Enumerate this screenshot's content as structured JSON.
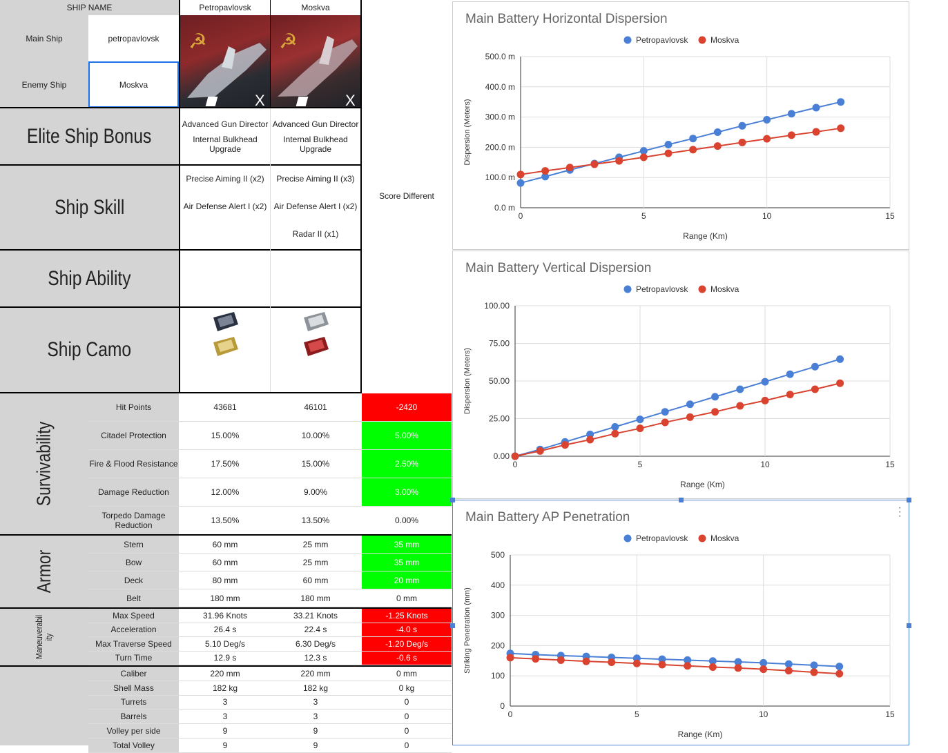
{
  "header": {
    "ship_name_label": "SHIP NAME",
    "main_ship_label": "Main Ship",
    "main_ship_value": "petropavlovsk",
    "enemy_ship_label": "Enemy Ship",
    "enemy_ship_value": "Moskva",
    "ship1_name": "Petropavlovsk",
    "ship2_name": "Moskva",
    "ship_badge": "X"
  },
  "sections": {
    "elite": "Elite Ship Bonus",
    "skill": "Ship Skill",
    "ability": "Ship Ability",
    "camo": "Ship Camo",
    "survivability": "Survivability",
    "armor": "Armor",
    "maneuverability": "Maneuverabil\nity"
  },
  "elite": {
    "ship1": [
      "Advanced Gun Director",
      "Internal Bulkhead\nUpgrade"
    ],
    "ship2": [
      "Advanced Gun Director",
      "Internal Bulkhead\nUpgrade"
    ]
  },
  "skills": {
    "ship1": [
      "Precise Aiming II (x2)",
      "Air Defense Alert I (x2)"
    ],
    "ship2": [
      "Precise Aiming II (x3)",
      "Air Defense Alert I (x2)",
      "Radar II (x1)"
    ]
  },
  "score_label": "Score Different",
  "survivability_rows": [
    {
      "label": "Hit Points",
      "v1": "43681",
      "v2": "46101",
      "diff": "-2420",
      "color": "red"
    },
    {
      "label": "Citadel Protection",
      "v1": "15.00%",
      "v2": "10.00%",
      "diff": "5.00%",
      "color": "green"
    },
    {
      "label": "Fire & Flood Resistance",
      "v1": "17.50%",
      "v2": "15.00%",
      "diff": "2.50%",
      "color": "green"
    },
    {
      "label": "Damage Reduction",
      "v1": "12.00%",
      "v2": "9.00%",
      "diff": "3.00%",
      "color": "green"
    },
    {
      "label": "Torpedo Damage\nReduction",
      "v1": "13.50%",
      "v2": "13.50%",
      "diff": "0.00%",
      "color": "none"
    }
  ],
  "armor_rows": [
    {
      "label": "Stern",
      "v1": "60 mm",
      "v2": "25 mm",
      "diff": "35 mm",
      "color": "green"
    },
    {
      "label": "Bow",
      "v1": "60 mm",
      "v2": "25 mm",
      "diff": "35 mm",
      "color": "green"
    },
    {
      "label": "Deck",
      "v1": "80 mm",
      "v2": "60 mm",
      "diff": "20 mm",
      "color": "green"
    },
    {
      "label": "Belt",
      "v1": "180 mm",
      "v2": "180 mm",
      "diff": "0 mm",
      "color": "none"
    }
  ],
  "maneuver_rows": [
    {
      "label": "Max Speed",
      "v1": "31.96 Knots",
      "v2": "33.21 Knots",
      "diff": "-1.25 Knots",
      "color": "red"
    },
    {
      "label": "Acceleration",
      "v1": "26.4 s",
      "v2": "22.4 s",
      "diff": "-4.0 s",
      "color": "red"
    },
    {
      "label": "Max Traverse Speed",
      "v1": "5.10 Deg/s",
      "v2": "6.30 Deg/s",
      "diff": "-1.20 Deg/s",
      "color": "red"
    },
    {
      "label": "Turn Time",
      "v1": "12.9 s",
      "v2": "12.3 s",
      "diff": "-0.6 s",
      "color": "red"
    }
  ],
  "battery_rows": [
    {
      "label": "Caliber",
      "v1": "220 mm",
      "v2": "220 mm",
      "diff": "0 mm",
      "color": "none"
    },
    {
      "label": "Shell Mass",
      "v1": "182 kg",
      "v2": "182 kg",
      "diff": "0 kg",
      "color": "none"
    },
    {
      "label": "Turrets",
      "v1": "3",
      "v2": "3",
      "diff": "0",
      "color": "none"
    },
    {
      "label": "Barrels",
      "v1": "3",
      "v2": "3",
      "diff": "0",
      "color": "none"
    },
    {
      "label": "Volley per side",
      "v1": "9",
      "v2": "9",
      "diff": "0",
      "color": "none"
    },
    {
      "label": "Total Volley",
      "v1": "9",
      "v2": "9",
      "diff": "0",
      "color": "none"
    }
  ],
  "colors": {
    "red": "#ff0000",
    "green": "#00ff00",
    "grey": "#d4d4d4",
    "blue_series": "#4a7fd6",
    "red_series": "#d9432f"
  },
  "chart_data": [
    {
      "type": "line",
      "title": "Main Battery Horizontal Dispersion",
      "xlabel": "Range (Km)",
      "ylabel": "Dispersion (Meters)",
      "xlim": [
        0,
        15
      ],
      "ylim": [
        0,
        500
      ],
      "xticks": [
        0,
        5,
        10,
        15
      ],
      "yticks": [
        "0.0 m",
        "100.0 m",
        "200.0 m",
        "300.0 m",
        "400.0 m",
        "500.0 m"
      ],
      "legend_position": "top",
      "grid": true,
      "x": [
        0,
        1,
        2,
        3,
        4,
        5,
        6,
        7,
        8,
        9,
        10,
        11,
        12,
        13
      ],
      "series": [
        {
          "name": "Petropavlovsk",
          "color": "#4a7fd6",
          "values": [
            82,
            103,
            125,
            146,
            167,
            188,
            209,
            229,
            250,
            271,
            291,
            311,
            331,
            350
          ]
        },
        {
          "name": "Moskva",
          "color": "#d9432f",
          "values": [
            110,
            122,
            133,
            144,
            155,
            167,
            180,
            192,
            204,
            216,
            228,
            240,
            251,
            263
          ]
        }
      ]
    },
    {
      "type": "line",
      "title": "Main Battery Vertical Dispersion",
      "xlabel": "Range (Km)",
      "ylabel": "Dispersion (Meters)",
      "xlim": [
        0,
        15
      ],
      "ylim": [
        0,
        100
      ],
      "xticks": [
        0,
        5,
        10,
        15
      ],
      "yticks": [
        "0.00",
        "25.00",
        "50.00",
        "75.00",
        "100.00"
      ],
      "legend_position": "top",
      "grid": true,
      "x": [
        0,
        1,
        2,
        3,
        4,
        5,
        6,
        7,
        8,
        9,
        10,
        11,
        12,
        13
      ],
      "series": [
        {
          "name": "Petropavlovsk",
          "color": "#4a7fd6",
          "values": [
            0,
            4.5,
            9.5,
            14.5,
            19.5,
            24.5,
            29.5,
            34.5,
            39.5,
            44.5,
            49.5,
            54.5,
            59.5,
            64.5
          ]
        },
        {
          "name": "Moskva",
          "color": "#d9432f",
          "values": [
            0,
            3.5,
            7.5,
            11,
            15,
            18.5,
            22.5,
            26,
            29.5,
            33.5,
            37,
            41,
            44.5,
            48.5
          ]
        }
      ]
    },
    {
      "type": "line",
      "title": "Main Battery AP Penetration",
      "xlabel": "Range (Km)",
      "ylabel": "Striking Penetration (mm)",
      "xlim": [
        0,
        15
      ],
      "ylim": [
        0,
        500
      ],
      "xticks": [
        0,
        5,
        10,
        15
      ],
      "yticks": [
        "0",
        "100",
        "200",
        "300",
        "400",
        "500"
      ],
      "legend_position": "top",
      "grid": true,
      "x": [
        0,
        1,
        2,
        3,
        4,
        5,
        6,
        7,
        8,
        9,
        10,
        11,
        12,
        13
      ],
      "series": [
        {
          "name": "Petropavlovsk",
          "color": "#4a7fd6",
          "values": [
            174,
            170,
            167,
            164,
            161,
            158,
            155,
            152,
            149,
            146,
            143,
            139,
            135,
            131
          ]
        },
        {
          "name": "Moskva",
          "color": "#d9432f",
          "values": [
            160,
            156,
            152,
            148,
            145,
            141,
            137,
            133,
            129,
            126,
            122,
            117,
            112,
            107
          ]
        }
      ]
    }
  ]
}
